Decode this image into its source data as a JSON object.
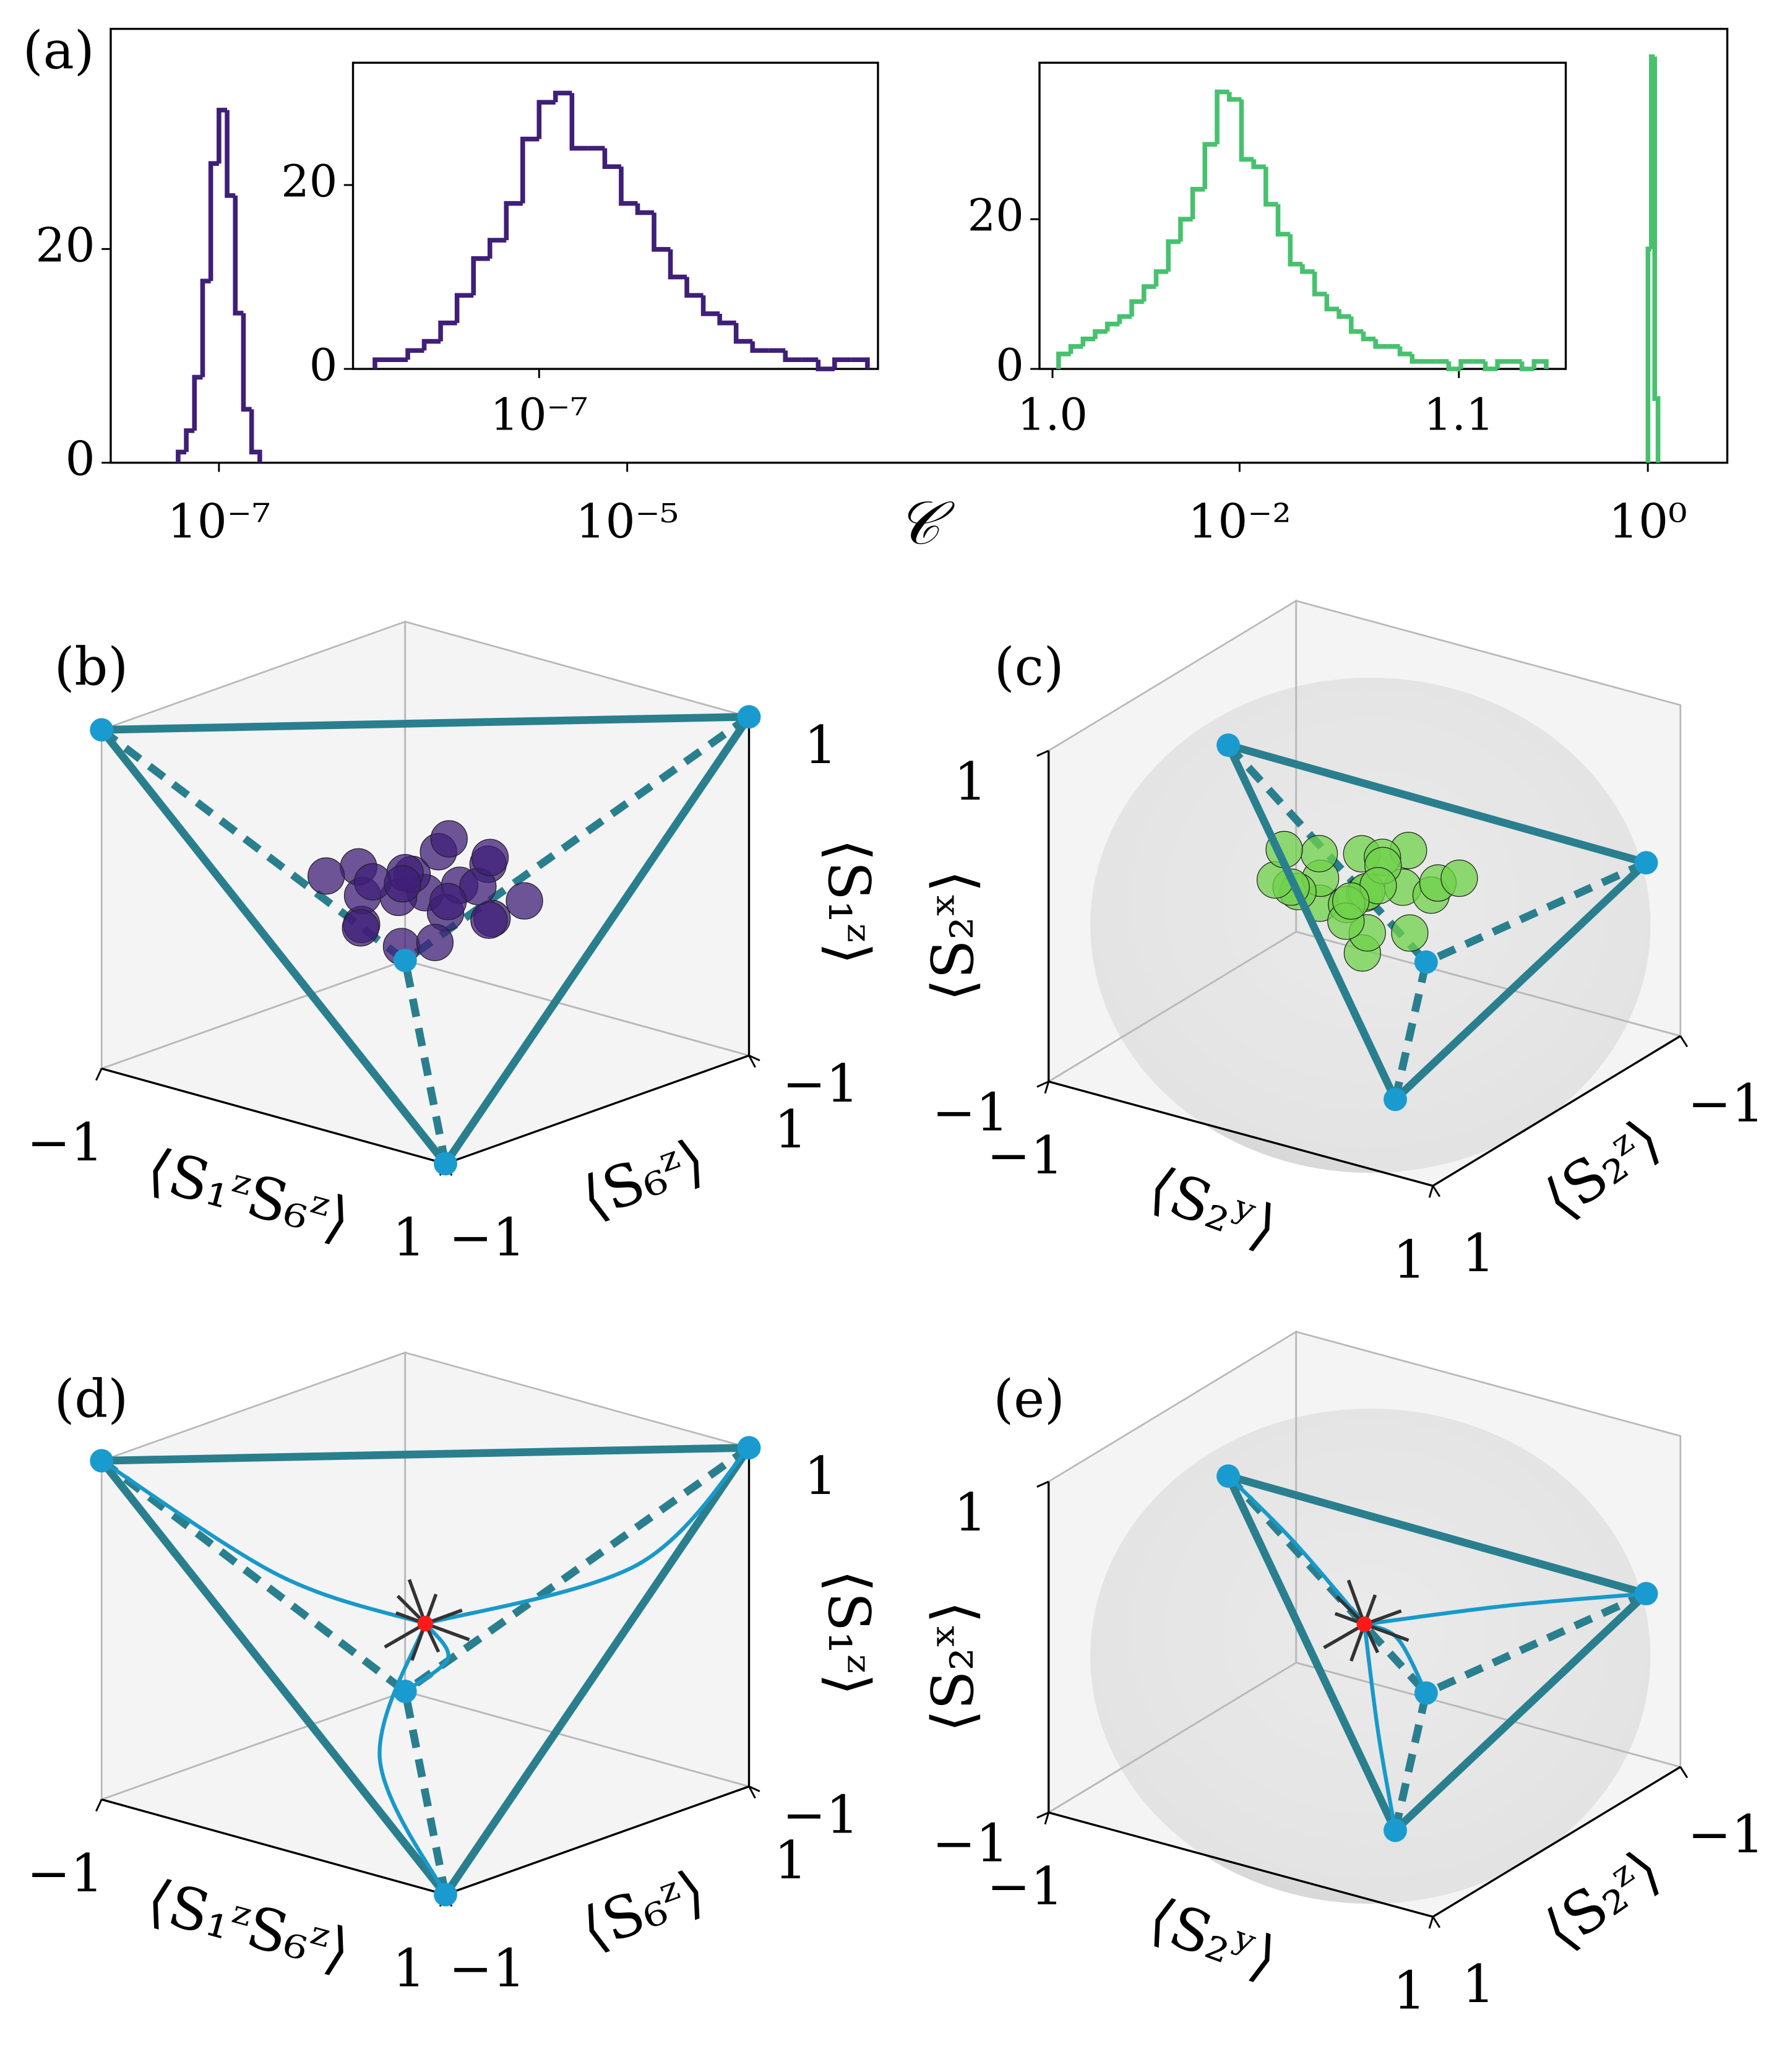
{
  "chart_data": [
    {
      "type": "histogram",
      "panel_label": "(a)",
      "xlabel": "𝒞",
      "xscale": "log",
      "xlim": [
        2.95e-08,
        2.45
      ],
      "ylim": [
        0,
        40.6
      ],
      "xticks": [
        {
          "value": 1e-07,
          "label": "10⁻⁷"
        },
        {
          "value": 1e-05,
          "label": "10⁻⁵"
        },
        {
          "value": 0.01,
          "label": "10⁻²"
        },
        {
          "value": 1,
          "label": "10⁰"
        }
      ],
      "yticks": [
        0,
        20
      ],
      "series": [
        {
          "color": "#3f1f78",
          "bins": [
            6.31e-08,
            6.918e-08,
            7.586e-08,
            8.318e-08,
            9.12e-08,
            1e-07,
            1.0965e-07,
            1.2023e-07,
            1.3183e-07,
            1.4454e-07,
            1.5849e-07
          ],
          "values": [
            1,
            3,
            8,
            17,
            28,
            33,
            25,
            14,
            5,
            1
          ]
        },
        {
          "color": "#47c16e",
          "bins": [
            1.0015,
            1.04,
            1.08,
            1.1215
          ],
          "values": [
            20,
            38,
            6
          ]
        }
      ]
    },
    {
      "type": "histogram",
      "xscale": "log",
      "xlim": [
        6.76e-08,
        2.04e-07
      ],
      "ylim": [
        0,
        33.3
      ],
      "xticks": [
        {
          "value": 1e-07,
          "label": "10⁻⁷"
        }
      ],
      "yticks": [
        0,
        20
      ],
      "series": [
        {
          "color": "#3f1f78",
          "bins": [
            7.079e-08,
            7.328e-08,
            7.586e-08,
            7.852e-08,
            8.128e-08,
            8.414e-08,
            8.71e-08,
            9.016e-08,
            9.333e-08,
            9.661e-08,
            1e-07,
            1.0351e-07,
            1.0715e-07,
            1.1092e-07,
            1.1482e-07,
            1.1885e-07,
            1.2303e-07,
            1.2735e-07,
            1.3183e-07,
            1.3646e-07,
            1.4125e-07,
            1.4622e-07,
            1.5136e-07,
            1.5668e-07,
            1.6218e-07,
            1.6788e-07,
            1.7378e-07,
            1.7989e-07,
            1.8621e-07,
            1.9275e-07,
            1.9953e-07
          ],
          "values": [
            1,
            1,
            2,
            3,
            5,
            8,
            12,
            14,
            18,
            25,
            29,
            30,
            24,
            24,
            22,
            18,
            17,
            13,
            10,
            8,
            6,
            5,
            3,
            2,
            2,
            1,
            1,
            0,
            1,
            1
          ]
        }
      ]
    },
    {
      "type": "histogram",
      "xscale": "linear",
      "xlim": [
        0.9968,
        1.1263
      ],
      "ylim": [
        0,
        40.9
      ],
      "xticks": [
        {
          "value": 1,
          "label": "1.0"
        },
        {
          "value": 1.1,
          "label": "1.1"
        }
      ],
      "yticks": [
        0,
        20
      ],
      "series": [
        {
          "color": "#47c16e",
          "bins": [
            1.0015,
            1.0045,
            1.0075,
            1.0105,
            1.0135,
            1.0165,
            1.0195,
            1.0225,
            1.0255,
            1.0285,
            1.0315,
            1.0345,
            1.0375,
            1.0405,
            1.0435,
            1.0465,
            1.0495,
            1.0525,
            1.0555,
            1.0585,
            1.0615,
            1.0645,
            1.0675,
            1.0705,
            1.0735,
            1.0765,
            1.0795,
            1.0825,
            1.0855,
            1.0885,
            1.0915,
            1.0945,
            1.0975,
            1.1005,
            1.1035,
            1.1065,
            1.1095,
            1.1125,
            1.1155,
            1.1185,
            1.1215
          ],
          "values": [
            2,
            3,
            4,
            5,
            6,
            7,
            9,
            11,
            13,
            17,
            20,
            24,
            30,
            37,
            36,
            28,
            27,
            22,
            18,
            14,
            13,
            10,
            8,
            7,
            5,
            4,
            3,
            3,
            2,
            1,
            1,
            1,
            0,
            1,
            1,
            0,
            1,
            1,
            0,
            1
          ]
        }
      ]
    },
    {
      "type": "scatter3d",
      "panel_label": "(b)",
      "xlabel": "⟨S₁ᶻS₆ᶻ⟩",
      "ylabel": "⟨S₆ᶻ⟩",
      "zlabel": "⟨S₁ᶻ⟩",
      "xlim": [
        -1,
        1
      ],
      "ylim": [
        -1,
        1
      ],
      "zlim": [
        -1,
        1
      ],
      "xticks": [
        {
          "value": -1,
          "label": "−1"
        },
        1
      ],
      "yticks": [
        {
          "value": -1,
          "label": "−1"
        },
        1
      ],
      "zticks": [
        {
          "value": -1,
          "label": "−1"
        },
        1
      ],
      "edge_color": "#2a7f8e",
      "vertex_color": "#1a9bd0",
      "vertices": [
        [
          1,
          1,
          1
        ],
        [
          -1,
          -1,
          1
        ],
        [
          1,
          -1,
          -1
        ],
        [
          -1,
          1,
          -1
        ]
      ],
      "point_color": "#3f1f78",
      "points": [
        [
          0,
          0,
          0
        ],
        [
          0.2,
          0,
          0.1
        ],
        [
          -0.2,
          0.05,
          -0.1
        ],
        [
          0.1,
          -0.2,
          0.2
        ],
        [
          -0.1,
          0.2,
          0.15
        ],
        [
          0.3,
          0.1,
          -0.1
        ],
        [
          -0.3,
          -0.1,
          0.1
        ],
        [
          0.15,
          0.25,
          -0.2
        ],
        [
          -0.15,
          -0.25,
          -0.15
        ],
        [
          0.05,
          0.1,
          0.3
        ],
        [
          -0.05,
          -0.1,
          -0.3
        ],
        [
          0.25,
          -0.15,
          0
        ],
        [
          -0.25,
          0.15,
          0
        ],
        [
          0.1,
          0.3,
          0.1
        ],
        [
          -0.1,
          -0.3,
          0.05
        ],
        [
          0.35,
          -0.05,
          0.15
        ],
        [
          -0.35,
          0.05,
          -0.05
        ],
        [
          0,
          0.15,
          -0.1
        ],
        [
          0,
          -0.15,
          0.1
        ],
        [
          0.2,
          0.2,
          0.2
        ],
        [
          -0.2,
          -0.2,
          -0.2
        ],
        [
          0.4,
          0.2,
          0
        ],
        [
          -0.4,
          -0.2,
          0.05
        ],
        [
          0.1,
          -0.05,
          -0.25
        ]
      ]
    },
    {
      "type": "scatter3d",
      "panel_label": "(c)",
      "xlabel": "⟨S₂ʸ⟩",
      "ylabel": "⟨S₂ᶻ⟩",
      "zlabel": "⟨S₂ˣ⟩",
      "sphere": true,
      "xlim": [
        -1,
        1
      ],
      "ylim": [
        -1,
        1
      ],
      "zlim": [
        -1,
        1
      ],
      "xticks": [
        {
          "value": -1,
          "label": "−1"
        },
        1
      ],
      "yticks": [
        {
          "value": -1,
          "label": "−1"
        },
        1
      ],
      "zticks": [
        {
          "value": -1,
          "label": "−1"
        },
        1
      ],
      "edge_color": "#2a7f8e",
      "vertex_color": "#1a9bd0",
      "vertices": [
        [
          -0.78,
          -0.11,
          0.6
        ],
        [
          0.88,
          -0.91,
          0.05
        ],
        [
          0.45,
          0.45,
          -0.9
        ],
        [
          0.63,
          0.48,
          0
        ]
      ],
      "point_color": "#6fd14a",
      "points": [
        [
          0,
          0,
          0
        ],
        [
          0.2,
          0,
          0.1
        ],
        [
          -0.2,
          0.05,
          -0.1
        ],
        [
          0.1,
          -0.2,
          0.2
        ],
        [
          -0.1,
          0.2,
          0.15
        ],
        [
          0.3,
          0.1,
          -0.1
        ],
        [
          -0.3,
          -0.1,
          0.1
        ],
        [
          0.15,
          0.25,
          -0.2
        ],
        [
          -0.15,
          -0.25,
          -0.15
        ],
        [
          0.05,
          0.1,
          0.3
        ],
        [
          -0.05,
          -0.1,
          -0.3
        ],
        [
          0.25,
          -0.15,
          0
        ],
        [
          -0.25,
          0.15,
          0
        ],
        [
          0.1,
          0.3,
          0.1
        ],
        [
          -0.1,
          -0.3,
          0.05
        ],
        [
          0.35,
          -0.05,
          0.15
        ],
        [
          -0.35,
          0.05,
          -0.05
        ],
        [
          0,
          0.15,
          -0.1
        ],
        [
          0,
          -0.15,
          0.1
        ],
        [
          0.2,
          0.2,
          0.2
        ],
        [
          -0.2,
          -0.2,
          -0.2
        ],
        [
          -0.4,
          0.1,
          0
        ],
        [
          0.3,
          -0.3,
          0.05
        ],
        [
          -0.45,
          -0.05,
          0.1
        ]
      ]
    },
    {
      "type": "trajectory3d",
      "panel_label": "(d)",
      "xlabel": "⟨S₁ᶻS₆ᶻ⟩",
      "ylabel": "⟨S₆ᶻ⟩",
      "zlabel": "⟨S₁ᶻ⟩",
      "xlim": [
        -1,
        1
      ],
      "ylim": [
        -1,
        1
      ],
      "zlim": [
        -1,
        1
      ],
      "xticks": [
        {
          "value": -1,
          "label": "−1"
        },
        1
      ],
      "yticks": [
        {
          "value": -1,
          "label": "−1"
        },
        1
      ],
      "zticks": [
        {
          "value": -1,
          "label": "−1"
        },
        1
      ],
      "edge_color": "#2a7f8e",
      "vertex_color": "#1a9bd0",
      "line_color": "#1899c9",
      "vertices": [
        [
          1,
          1,
          1
        ],
        [
          -1,
          -1,
          1
        ],
        [
          1,
          -1,
          -1
        ],
        [
          -1,
          1,
          -1
        ]
      ],
      "trajectories": [
        [
          [
            -1,
            -1,
            1
          ],
          [
            -0.45,
            -0.45,
            0.3
          ],
          [
            0,
            0,
            0
          ]
        ],
        [
          [
            1,
            1,
            1
          ],
          [
            0.7,
            0.6,
            0.35
          ],
          [
            0,
            0,
            0
          ]
        ],
        [
          [
            1,
            -1,
            -1
          ],
          [
            0,
            -0.3,
            -0.7
          ],
          [
            0,
            0,
            0
          ]
        ],
        [
          [
            -1,
            1,
            -1
          ],
          [
            0,
            0.15,
            -0.25
          ],
          [
            0,
            0,
            0
          ]
        ]
      ],
      "fixed_point": [
        0,
        0,
        0
      ],
      "fixed_point_color": "#ff1a1a"
    },
    {
      "type": "trajectory3d",
      "panel_label": "(e)",
      "xlabel": "⟨S₂ʸ⟩",
      "ylabel": "⟨S₂ᶻ⟩",
      "zlabel": "⟨S₂ˣ⟩",
      "sphere": true,
      "xlim": [
        -1,
        1
      ],
      "ylim": [
        -1,
        1
      ],
      "zlim": [
        -1,
        1
      ],
      "xticks": [
        {
          "value": -1,
          "label": "−1"
        },
        1
      ],
      "yticks": [
        {
          "value": -1,
          "label": "−1"
        },
        1
      ],
      "zticks": [
        {
          "value": -1,
          "label": "−1"
        },
        1
      ],
      "edge_color": "#2a7f8e",
      "vertex_color": "#1a9bd0",
      "line_color": "#1899c9",
      "vertices": [
        [
          -0.78,
          -0.11,
          0.6
        ],
        [
          0.88,
          -0.91,
          0.05
        ],
        [
          0.45,
          0.45,
          -0.9
        ],
        [
          0.63,
          0.48,
          0
        ]
      ],
      "trajectories": [
        [
          [
            -0.78,
            -0.11,
            0.6
          ],
          [
            -0.4,
            -0.05,
            0.35
          ],
          [
            0,
            0,
            0
          ]
        ],
        [
          [
            0.88,
            -0.91,
            0.05
          ],
          [
            0.45,
            -0.45,
            0.05
          ],
          [
            0,
            0,
            0
          ]
        ],
        [
          [
            0.45,
            0.45,
            -0.9
          ],
          [
            0.2,
            0.2,
            -0.5
          ],
          [
            0,
            0,
            0
          ]
        ],
        [
          [
            0.63,
            0.48,
            0
          ],
          [
            0.3,
            0.2,
            0.1
          ],
          [
            0,
            0,
            0
          ]
        ]
      ],
      "fixed_point": [
        0,
        0,
        0
      ],
      "fixed_point_color": "#ff1a1a"
    }
  ]
}
